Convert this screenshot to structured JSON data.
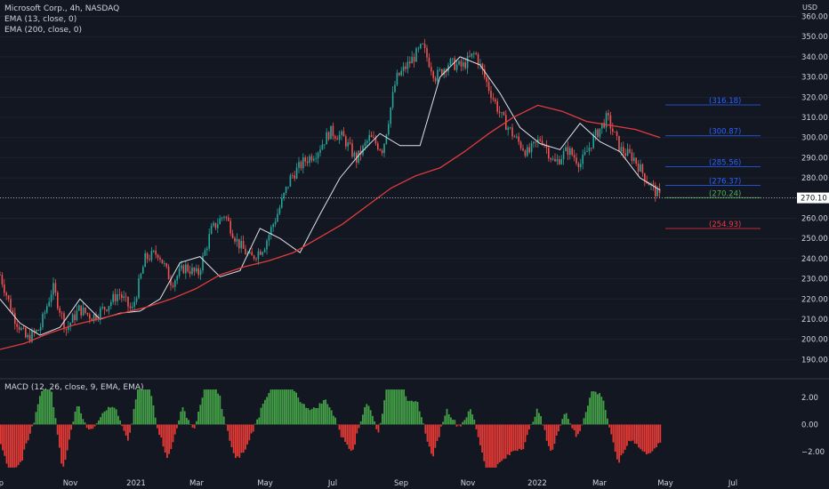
{
  "header": {
    "symbol_line": "Microsoft Corp., 4h, NASDAQ",
    "indicators": [
      "EMA (13, close, 0)",
      "EMA (200, close, 0)"
    ],
    "currency": "USD"
  },
  "macd_panel": {
    "label": "MACD (12, 26, close, 9, EMA, EMA)"
  },
  "colors": {
    "background": "#131722",
    "up": "#26a69a",
    "down": "#ef5350",
    "ema13": "#e0e3eb",
    "ema200": "#e03c3c",
    "level_blue": "#2962ff",
    "level_green": "#4caf50",
    "level_red": "#f23645",
    "hist_up": "#43a047",
    "hist_down": "#e53935"
  },
  "chart_data": [
    {
      "type": "line",
      "title": "Microsoft Corp., 4h, NASDAQ",
      "x_tick_labels": [
        "Sep",
        "Nov",
        "2021",
        "Mar",
        "May",
        "Jul",
        "Sep",
        "Nov",
        "2022",
        "Mar",
        "May",
        "Jul"
      ],
      "y_ticks": [
        190,
        200,
        210,
        220,
        230,
        240,
        250,
        260,
        270,
        280,
        290,
        300,
        310,
        320,
        330,
        340,
        350,
        360
      ],
      "y_tick_labels": [
        "190.00",
        "200.00",
        "210.00",
        "220.00",
        "230.00",
        "240.00",
        "250.00",
        "260.00",
        "",
        "280.00",
        "290.00",
        "300.00",
        "310.00",
        "320.00",
        "330.00",
        "340.00",
        "350.00",
        "360.00"
      ],
      "ylim": [
        184,
        362
      ],
      "last_price": 270.1,
      "last_price_label": "270.10",
      "price_path": [
        [
          "Sep",
          232
        ],
        [
          "Sep",
          212
        ],
        [
          "Sep",
          200
        ],
        [
          "Nov",
          205
        ],
        [
          "Nov",
          226
        ],
        [
          "Nov",
          205
        ],
        [
          "Nov",
          215
        ],
        [
          "Nov",
          211
        ],
        [
          "2021",
          216
        ],
        [
          "2021",
          223
        ],
        [
          "2021",
          214
        ],
        [
          "2021",
          240
        ],
        [
          "Mar",
          243
        ],
        [
          "Mar",
          228
        ],
        [
          "Mar",
          236
        ],
        [
          "Mar",
          232
        ],
        [
          "May",
          254
        ],
        [
          "May",
          262
        ],
        [
          "May",
          248
        ],
        [
          "May",
          240
        ],
        [
          "May",
          246
        ],
        [
          "Jul",
          262
        ],
        [
          "Jul",
          280
        ],
        [
          "Jul",
          288
        ],
        [
          "Jul",
          293
        ],
        [
          "Sep",
          303
        ],
        [
          "Sep",
          300
        ],
        [
          "Sep",
          289
        ],
        [
          "Sep",
          300
        ],
        [
          "Sep",
          294
        ],
        [
          "Nov",
          329
        ],
        [
          "Nov",
          337
        ],
        [
          "Nov",
          345
        ],
        [
          "Nov",
          330
        ],
        [
          "Nov",
          337
        ],
        [
          "Nov",
          335
        ],
        [
          "Nov",
          342
        ],
        [
          "2022",
          325
        ],
        [
          "2022",
          310
        ],
        [
          "2022",
          300
        ],
        [
          "2022",
          292
        ],
        [
          "2022",
          300
        ],
        [
          "2022",
          287
        ],
        [
          "Mar",
          294
        ],
        [
          "Mar",
          287
        ],
        [
          "Mar",
          300
        ],
        [
          "Mar",
          310
        ],
        [
          "Mar",
          294
        ],
        [
          "Mar",
          290
        ],
        [
          "May",
          279
        ],
        [
          "May",
          270.1
        ]
      ],
      "series": [
        {
          "name": "EMA (13, close, 0)",
          "values": [
            220,
            208,
            202,
            206,
            220,
            210,
            213,
            214,
            220,
            238,
            241,
            231,
            234,
            255,
            250,
            243,
            262,
            280,
            292,
            302,
            296,
            296,
            330,
            340,
            336,
            322,
            305,
            297,
            294,
            307,
            298,
            293,
            280,
            274
          ]
        },
        {
          "name": "EMA (200, close, 0)",
          "values": [
            195,
            198,
            203,
            207,
            210,
            213,
            216,
            220,
            225,
            232,
            236,
            239,
            243,
            250,
            257,
            266,
            275,
            281,
            285,
            293,
            302,
            310,
            316,
            313,
            308,
            306,
            304,
            300
          ]
        }
      ],
      "levels": [
        {
          "value": 316.18,
          "label": "(316.18)",
          "color": "blue"
        },
        {
          "value": 300.87,
          "label": "(300.87)",
          "color": "blue"
        },
        {
          "value": 285.56,
          "label": "(285.56)",
          "color": "blue"
        },
        {
          "value": 276.37,
          "label": "(276.37)",
          "color": "blue"
        },
        {
          "value": 270.24,
          "label": "(270.24)",
          "color": "green"
        },
        {
          "value": 254.93,
          "label": "(254.93)",
          "color": "red"
        }
      ]
    },
    {
      "type": "bar",
      "title": "MACD (12, 26, close, 9, EMA, EMA)",
      "y_ticks": [
        2,
        0,
        -2
      ],
      "y_tick_labels": [
        "2.00",
        "0.00",
        "−2.00"
      ],
      "ylim": [
        -3.6,
        3.0
      ]
    }
  ]
}
